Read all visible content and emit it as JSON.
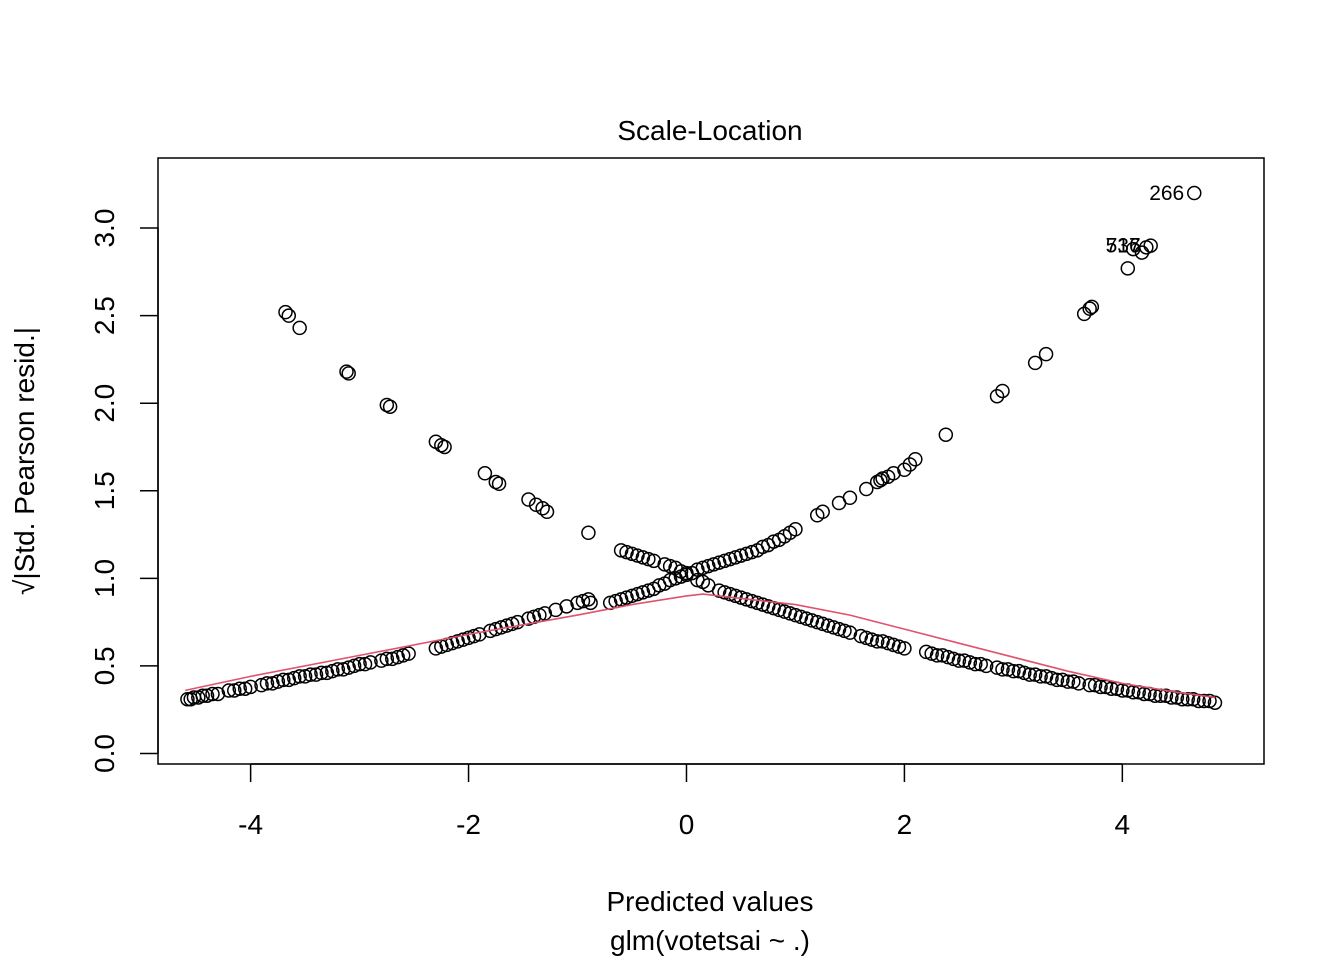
{
  "chart_data": {
    "type": "scatter",
    "title": "Scale-Location",
    "xlabel": "Predicted values",
    "subtitle": "glm(votetsai ~ .)",
    "ylabel": "√|Std. Pearson resid.|",
    "xlim": [
      -4.85,
      5.3
    ],
    "ylim": [
      -0.06,
      3.4
    ],
    "x_ticks": [
      -4,
      -2,
      0,
      2,
      4
    ],
    "x_tick_labels": [
      "-4",
      "-2",
      "0",
      "2",
      "4"
    ],
    "y_ticks": [
      0.0,
      0.5,
      1.0,
      1.5,
      2.0,
      2.5,
      3.0
    ],
    "y_tick_labels": [
      "0.0",
      "0.5",
      "1.0",
      "1.5",
      "2.0",
      "2.5",
      "3.0"
    ],
    "grid": false,
    "smooth_color": "#df536b",
    "point_color": "#000000",
    "branches": [
      {
        "x": [
          -4.58,
          -4.55,
          -4.52,
          -4.48,
          -4.44,
          -4.4,
          -4.35,
          -4.3,
          -4.2,
          -4.15,
          -4.1,
          -4.05,
          -4.0,
          -3.9,
          -3.85,
          -3.8,
          -3.75,
          -3.7,
          -3.65,
          -3.6,
          -3.55,
          -3.5,
          -3.45,
          -3.4,
          -3.35,
          -3.3,
          -3.25,
          -3.2,
          -3.15,
          -3.1,
          -3.05,
          -3.0,
          -2.95,
          -2.9,
          -2.8,
          -2.75,
          -2.7,
          -2.65,
          -2.6,
          -2.55,
          -2.3,
          -2.25,
          -2.2,
          -2.15,
          -2.1,
          -2.05,
          -2.0,
          -1.95,
          -1.9,
          -1.8,
          -1.75,
          -1.7,
          -1.65,
          -1.6,
          -1.55,
          -1.45,
          -1.4,
          -1.35,
          -1.3,
          -1.2,
          -1.1,
          -1.0,
          -0.95,
          -0.9,
          -0.88,
          -0.7,
          -0.65,
          -0.6,
          -0.55,
          -0.5,
          -0.45,
          -0.4,
          -0.35,
          -0.3,
          -0.25,
          -0.2,
          -0.15,
          -0.1,
          -0.05,
          0.0,
          0.05,
          0.1,
          0.15,
          0.2,
          0.25,
          0.3,
          0.35,
          0.4,
          0.45,
          0.5,
          0.55,
          0.6,
          0.65,
          0.7,
          0.75,
          0.8,
          0.85,
          0.9,
          0.95,
          1.0,
          1.2,
          1.25,
          1.4,
          1.5,
          1.65,
          1.75,
          1.78,
          1.8,
          1.85,
          1.9,
          2.0,
          2.05,
          2.1,
          2.38,
          2.85,
          2.9,
          3.2,
          3.3,
          3.65,
          3.7,
          3.72,
          4.05,
          4.1,
          4.18,
          4.22,
          4.26,
          4.66
        ],
        "y": [
          0.31,
          0.31,
          0.32,
          0.32,
          0.33,
          0.33,
          0.34,
          0.34,
          0.36,
          0.36,
          0.37,
          0.37,
          0.38,
          0.39,
          0.4,
          0.4,
          0.41,
          0.42,
          0.42,
          0.43,
          0.44,
          0.44,
          0.45,
          0.45,
          0.46,
          0.46,
          0.47,
          0.48,
          0.48,
          0.49,
          0.5,
          0.51,
          0.51,
          0.52,
          0.53,
          0.54,
          0.54,
          0.55,
          0.56,
          0.57,
          0.6,
          0.61,
          0.62,
          0.63,
          0.64,
          0.65,
          0.66,
          0.67,
          0.68,
          0.7,
          0.71,
          0.72,
          0.73,
          0.74,
          0.75,
          0.77,
          0.78,
          0.79,
          0.8,
          0.82,
          0.84,
          0.86,
          0.87,
          0.88,
          0.86,
          0.86,
          0.87,
          0.88,
          0.89,
          0.9,
          0.91,
          0.92,
          0.93,
          0.94,
          0.96,
          0.97,
          0.99,
          1.0,
          1.01,
          1.02,
          1.03,
          1.05,
          1.06,
          1.07,
          1.08,
          1.09,
          1.1,
          1.11,
          1.12,
          1.13,
          1.14,
          1.15,
          1.16,
          1.18,
          1.19,
          1.21,
          1.22,
          1.24,
          1.26,
          1.28,
          1.36,
          1.38,
          1.43,
          1.46,
          1.51,
          1.55,
          1.56,
          1.57,
          1.58,
          1.6,
          1.62,
          1.65,
          1.68,
          1.82,
          2.04,
          2.07,
          2.23,
          2.28,
          2.51,
          2.54,
          2.55,
          2.77,
          2.88,
          2.86,
          2.89,
          2.9,
          3.2
        ]
      },
      {
        "x": [
          -3.68,
          -3.65,
          -3.55,
          -3.12,
          -3.1,
          -2.75,
          -2.72,
          -2.3,
          -2.25,
          -2.22,
          -1.85,
          -1.75,
          -1.72,
          -1.45,
          -1.38,
          -1.32,
          -1.28,
          -0.9,
          -0.6,
          -0.55,
          -0.5,
          -0.45,
          -0.4,
          -0.35,
          -0.3,
          -0.2,
          -0.15,
          -0.1,
          -0.05,
          0.0,
          0.1,
          0.15,
          0.2,
          0.3,
          0.35,
          0.4,
          0.45,
          0.5,
          0.55,
          0.6,
          0.65,
          0.7,
          0.75,
          0.8,
          0.85,
          0.9,
          0.95,
          1.0,
          1.05,
          1.1,
          1.15,
          1.2,
          1.25,
          1.3,
          1.35,
          1.4,
          1.45,
          1.5,
          1.6,
          1.65,
          1.7,
          1.75,
          1.8,
          1.85,
          1.9,
          1.95,
          2.0,
          2.2,
          2.25,
          2.3,
          2.35,
          2.4,
          2.45,
          2.5,
          2.55,
          2.6,
          2.65,
          2.7,
          2.75,
          2.85,
          2.9,
          2.95,
          3.0,
          3.05,
          3.1,
          3.15,
          3.2,
          3.25,
          3.3,
          3.35,
          3.4,
          3.45,
          3.5,
          3.55,
          3.6,
          3.7,
          3.75,
          3.8,
          3.85,
          3.9,
          3.95,
          4.0,
          4.05,
          4.1,
          4.15,
          4.2,
          4.25,
          4.3,
          4.35,
          4.4,
          4.45,
          4.5,
          4.55,
          4.6,
          4.65,
          4.7,
          4.75,
          4.8,
          4.85
        ],
        "y": [
          2.52,
          2.5,
          2.43,
          2.18,
          2.17,
          1.99,
          1.98,
          1.78,
          1.76,
          1.75,
          1.6,
          1.55,
          1.54,
          1.45,
          1.42,
          1.4,
          1.38,
          1.26,
          1.16,
          1.15,
          1.14,
          1.13,
          1.12,
          1.11,
          1.1,
          1.08,
          1.07,
          1.06,
          1.04,
          1.03,
          0.99,
          0.98,
          0.96,
          0.93,
          0.92,
          0.91,
          0.9,
          0.89,
          0.88,
          0.87,
          0.86,
          0.85,
          0.84,
          0.83,
          0.82,
          0.81,
          0.8,
          0.79,
          0.78,
          0.77,
          0.76,
          0.75,
          0.74,
          0.73,
          0.72,
          0.71,
          0.7,
          0.69,
          0.67,
          0.66,
          0.65,
          0.64,
          0.64,
          0.63,
          0.62,
          0.61,
          0.6,
          0.58,
          0.57,
          0.56,
          0.56,
          0.55,
          0.54,
          0.53,
          0.53,
          0.52,
          0.51,
          0.51,
          0.5,
          0.49,
          0.48,
          0.48,
          0.47,
          0.47,
          0.46,
          0.45,
          0.45,
          0.44,
          0.44,
          0.43,
          0.42,
          0.42,
          0.41,
          0.41,
          0.4,
          0.39,
          0.39,
          0.38,
          0.38,
          0.37,
          0.37,
          0.36,
          0.36,
          0.35,
          0.35,
          0.34,
          0.34,
          0.33,
          0.33,
          0.33,
          0.32,
          0.32,
          0.31,
          0.31,
          0.31,
          0.3,
          0.3,
          0.3,
          0.29
        ]
      }
    ],
    "smooth": {
      "x": [
        -4.6,
        -4.0,
        -3.0,
        -2.0,
        -1.0,
        -0.5,
        0.0,
        0.15,
        0.3,
        1.0,
        1.5,
        2.0,
        2.5,
        3.0,
        3.5,
        4.0,
        4.5,
        4.85
      ],
      "y": [
        0.36,
        0.44,
        0.56,
        0.68,
        0.79,
        0.85,
        0.9,
        0.91,
        0.9,
        0.85,
        0.79,
        0.71,
        0.63,
        0.55,
        0.47,
        0.4,
        0.35,
        0.32
      ]
    },
    "labels": [
      {
        "text": "266",
        "x": 4.66,
        "y": 3.2
      },
      {
        "text": "537",
        "x": 4.26,
        "y": 2.9
      },
      {
        "text": "716",
        "x": 4.26,
        "y": 2.9
      }
    ]
  }
}
